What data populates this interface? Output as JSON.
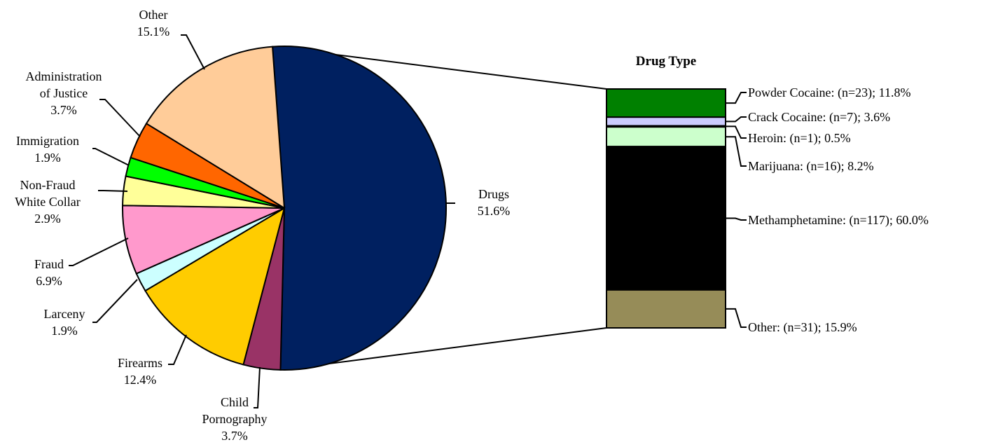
{
  "chart_data": [
    {
      "type": "pie",
      "slices": [
        {
          "label": "Drugs",
          "value": 51.6,
          "display": "51.6%",
          "color": "#002060"
        },
        {
          "label": "Child\nPornography",
          "value": 3.7,
          "display": "3.7%",
          "color": "#993366"
        },
        {
          "label": "Firearms",
          "value": 12.4,
          "display": "12.4%",
          "color": "#FFCC00"
        },
        {
          "label": "Larceny",
          "value": 1.9,
          "display": "1.9%",
          "color": "#CCFFFF"
        },
        {
          "label": "Fraud",
          "value": 6.9,
          "display": "6.9%",
          "color": "#FF99CC"
        },
        {
          "label": "Non-Fraud\nWhite Collar",
          "value": 2.9,
          "display": "2.9%",
          "color": "#FFFF99"
        },
        {
          "label": "Immigration",
          "value": 1.9,
          "display": "1.9%",
          "color": "#00FF00"
        },
        {
          "label": "Administration\nof Justice",
          "value": 3.7,
          "display": "3.7%",
          "color": "#FF6600"
        },
        {
          "label": "Other",
          "value": 15.1,
          "display": "15.1%",
          "color": "#FFCC99"
        }
      ]
    },
    {
      "type": "bar",
      "stacked": true,
      "title": "Drug Type",
      "segments": [
        {
          "label": "Powder Cocaine:",
          "n": 23,
          "display": "Powder Cocaine:  (n=23); 11.8%",
          "value": 11.8,
          "color": "#008000"
        },
        {
          "label": "Crack Cocaine:",
          "n": 7,
          "display": "Crack Cocaine:  (n=7); 3.6%",
          "value": 3.6,
          "color": "#CCCCFF"
        },
        {
          "label": "Heroin:",
          "n": 1,
          "display": "Heroin:  (n=1); 0.5%",
          "value": 0.5,
          "color": "#333399"
        },
        {
          "label": "Marijuana:",
          "n": 16,
          "display": "Marijuana:  (n=16); 8.2%",
          "value": 8.2,
          "color": "#CCFFCC"
        },
        {
          "label": "Methamphetamine:",
          "n": 117,
          "display": "Methamphetamine:  (n=117); 60.0%",
          "value": 60.0,
          "color": "#000000"
        },
        {
          "label": "Other:",
          "n": 31,
          "display": "Other:  (n=31); 15.9%",
          "value": 15.9,
          "color": "#968C58"
        }
      ]
    }
  ]
}
